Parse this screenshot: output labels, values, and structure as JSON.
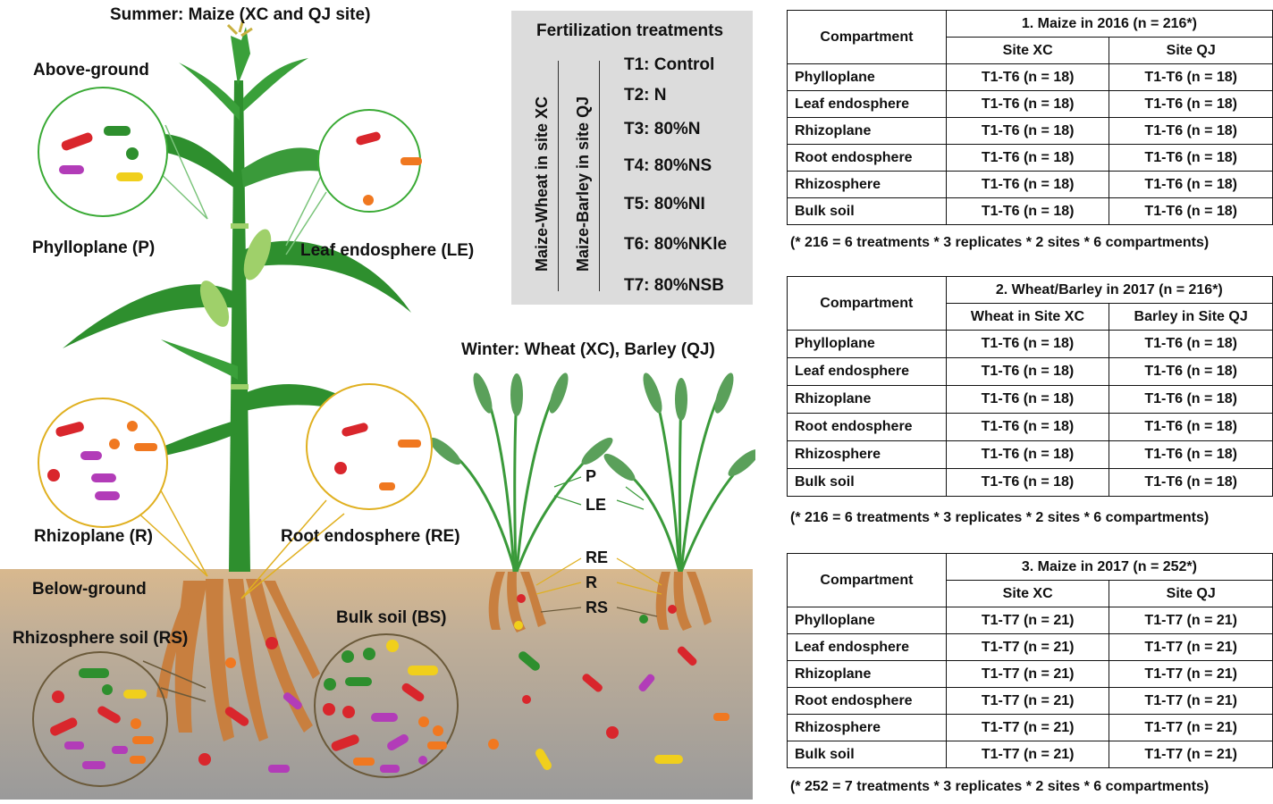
{
  "scene": {
    "summer_title": "Summer: Maize (XC and QJ site)",
    "winter_title": "Winter: Wheat (XC), Barley (QJ)",
    "above_ground": "Above-ground",
    "below_ground": "Below-ground",
    "phylloplane": "Phylloplane (P)",
    "leaf_endosphere": "Leaf endosphere (LE)",
    "rhizoplane": "Rhizoplane (R)",
    "root_endosphere": "Root endosphere (RE)",
    "rhizosphere_soil": "Rhizosphere soil (RS)",
    "bulk_soil": "Bulk soil (BS)",
    "wheat_labels": [
      "P",
      "LE",
      "RE",
      "R",
      "RS"
    ]
  },
  "colors": {
    "soil_top": "#d8b88e",
    "soil_bottom": "#9a9a9a",
    "plant_green": "#2e8f2e",
    "root_orange": "#c87f3f",
    "above_circle": "#3aaa35",
    "root_circle": "#e0b020",
    "soil_circle": "#6b5a3a",
    "treatment_bg": "#dcdcdc"
  },
  "treatments": {
    "title": "Fertilization treatments",
    "rot1": "Maize-Wheat  in site XC",
    "rot2": "Maize-Barley  in site QJ",
    "items": [
      "T1: Control",
      "T2: N",
      "T3: 80%N",
      "T4: 80%NS",
      "T5: 80%NI",
      "T6: 80%NKle",
      "T7: 80%NSB"
    ]
  },
  "tables": [
    {
      "header_left": "Compartment",
      "title": "1. Maize in 2016 (n = 216*)",
      "col1": "Site XC",
      "col2": "Site QJ",
      "rows": [
        [
          "Phylloplane",
          "T1-T6 (n = 18)",
          "T1-T6 (n = 18)"
        ],
        [
          "Leaf endosphere",
          "T1-T6 (n = 18)",
          "T1-T6 (n = 18)"
        ],
        [
          "Rhizoplane",
          "T1-T6 (n = 18)",
          "T1-T6 (n = 18)"
        ],
        [
          "Root endosphere",
          "T1-T6 (n = 18)",
          "T1-T6 (n = 18)"
        ],
        [
          "Rhizosphere",
          "T1-T6 (n = 18)",
          "T1-T6 (n = 18)"
        ],
        [
          "Bulk soil",
          "T1-T6 (n = 18)",
          "T1-T6 (n = 18)"
        ]
      ],
      "note": "(* 216 = 6 treatments * 3 replicates * 2 sites * 6 compartments)"
    },
    {
      "header_left": "Compartment",
      "title": "2. Wheat/Barley in 2017 (n = 216*)",
      "col1": "Wheat in Site XC",
      "col2": "Barley in Site QJ",
      "rows": [
        [
          "Phylloplane",
          "T1-T6 (n = 18)",
          "T1-T6 (n = 18)"
        ],
        [
          "Leaf endosphere",
          "T1-T6 (n = 18)",
          "T1-T6 (n = 18)"
        ],
        [
          "Rhizoplane",
          "T1-T6 (n = 18)",
          "T1-T6 (n = 18)"
        ],
        [
          "Root endosphere",
          "T1-T6 (n = 18)",
          "T1-T6 (n = 18)"
        ],
        [
          "Rhizosphere",
          "T1-T6 (n = 18)",
          "T1-T6 (n = 18)"
        ],
        [
          "Bulk soil",
          "T1-T6 (n = 18)",
          "T1-T6 (n = 18)"
        ]
      ],
      "note": "(* 216 = 6 treatments * 3 replicates * 2 sites * 6 compartments)"
    },
    {
      "header_left": "Compartment",
      "title": "3. Maize in 2017 (n = 252*)",
      "col1": "Site XC",
      "col2": "Site QJ",
      "rows": [
        [
          "Phylloplane",
          "T1-T7 (n = 21)",
          "T1-T7 (n = 21)"
        ],
        [
          "Leaf endosphere",
          "T1-T7 (n = 21)",
          "T1-T7 (n = 21)"
        ],
        [
          "Rhizoplane",
          "T1-T7 (n = 21)",
          "T1-T7 (n = 21)"
        ],
        [
          "Root endosphere",
          "T1-T7 (n = 21)",
          "T1-T7 (n = 21)"
        ],
        [
          "Rhizosphere",
          "T1-T7 (n = 21)",
          "T1-T7 (n = 21)"
        ],
        [
          "Bulk soil",
          "T1-T7 (n = 21)",
          "T1-T7 (n = 21)"
        ]
      ],
      "note": "(* 252 = 7 treatments * 3 replicates * 2 sites * 6 compartments)"
    }
  ]
}
